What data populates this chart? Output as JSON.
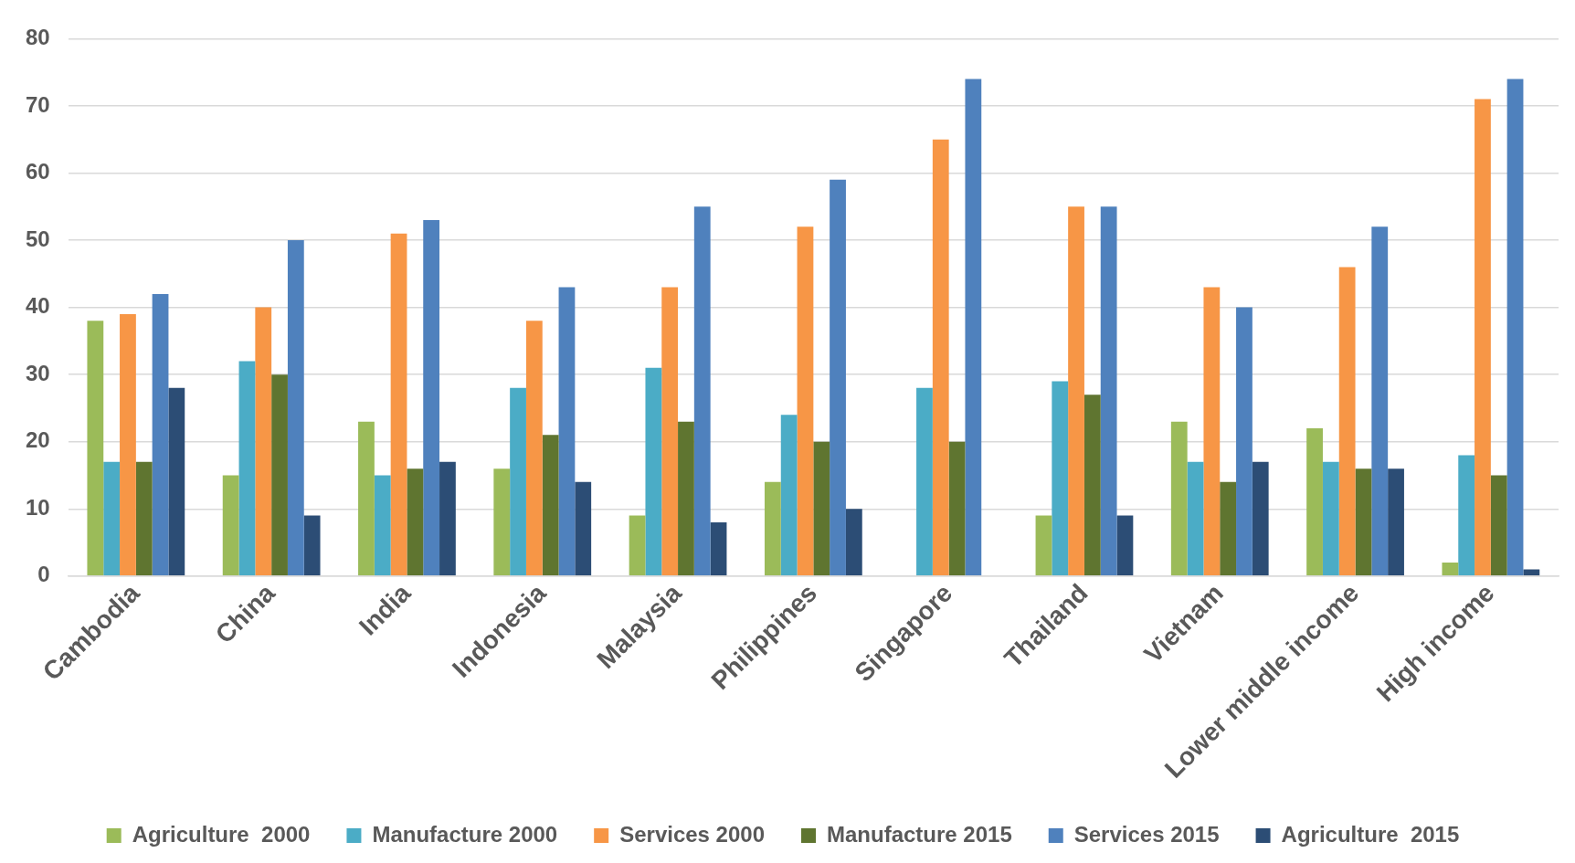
{
  "chart_data": {
    "type": "bar",
    "categories": [
      "Cambodia",
      "China",
      "India",
      "Indonesia",
      "Malaysia",
      "Philippines",
      "Singapore",
      "Thailand",
      "Vietnam",
      "Lower middle income",
      "High income"
    ],
    "series": [
      {
        "name": "Agriculture  2000",
        "color": "#9bbb59",
        "values": [
          38,
          15,
          23,
          16,
          9,
          14,
          0,
          9,
          23,
          22,
          2
        ]
      },
      {
        "name": "Manufacture 2000",
        "color": "#4bacc6",
        "values": [
          17,
          32,
          15,
          28,
          31,
          24,
          28,
          29,
          17,
          17,
          18
        ]
      },
      {
        "name": "Services 2000",
        "color": "#f79646",
        "values": [
          39,
          40,
          51,
          38,
          43,
          52,
          65,
          55,
          43,
          46,
          71
        ]
      },
      {
        "name": "Manufacture 2015",
        "color": "#5f7530",
        "values": [
          17,
          30,
          16,
          21,
          23,
          20,
          20,
          27,
          14,
          16,
          15
        ]
      },
      {
        "name": "Services 2015",
        "color": "#4f81bd",
        "values": [
          42,
          50,
          53,
          43,
          55,
          59,
          74,
          55,
          40,
          52,
          74
        ]
      },
      {
        "name": "Agriculture  2015",
        "color": "#2c4d75",
        "values": [
          28,
          9,
          17,
          14,
          8,
          10,
          0,
          9,
          17,
          16,
          1
        ]
      }
    ],
    "ylim": [
      0,
      80
    ],
    "yticks": [
      0,
      10,
      20,
      30,
      40,
      50,
      60,
      70,
      80
    ],
    "grid": "y",
    "legend": "bottom"
  }
}
